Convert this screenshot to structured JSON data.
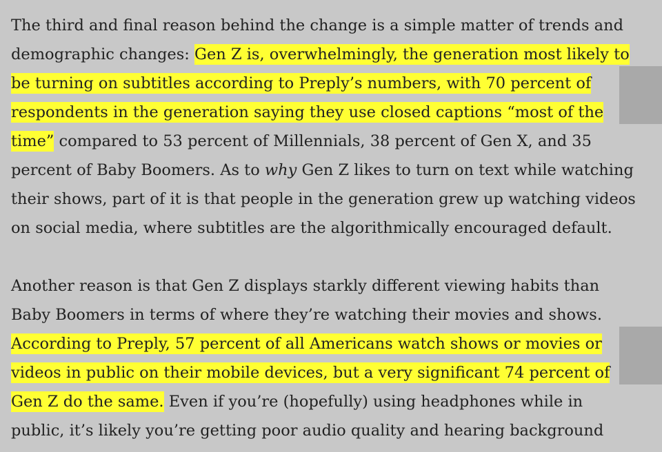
{
  "paragraph1": {
    "line1": "The third and final reason behind the change is a simple matter of trends and",
    "line2_plain": "demographic changes: ",
    "line2_hl": "Gen Z is, overwhelmingly, the generation most likely to",
    "line3_hl": "be turning on subtitles according to Preply’s numbers, with 70 percent of",
    "line4_hl": "respondents in the generation saying they use closed captions “most of the",
    "line5_hl": "time”",
    "line5_plain": " compared to 53 percent of Millennials, 38 percent of Gen X, and 35",
    "line6_before": "percent of Baby Boomers. As to ",
    "line6_em": "why",
    "line6_after": " Gen Z likes to turn on text while watching",
    "line7": "their shows, part of it is that people in the generation grew up watching videos",
    "line8": "on social media, where subtitles are the algorithmically encouraged default."
  },
  "paragraph2": {
    "line1": "Another reason is that Gen Z displays starkly different viewing habits than",
    "line2": "Baby Boomers in terms of where they’re watching their movies and shows.",
    "line3_hl": "According to Preply, 57 percent of all Americans watch shows or movies or",
    "line4_hl": "videos in public on their mobile devices, but a very significant 74 percent of",
    "line5_hl": "Gen Z do the same.",
    "line5_plain": " Even if you’re (hopefully) using headphones while in",
    "line6": "public, it’s likely you’re getting poor audio quality and hearing background"
  }
}
